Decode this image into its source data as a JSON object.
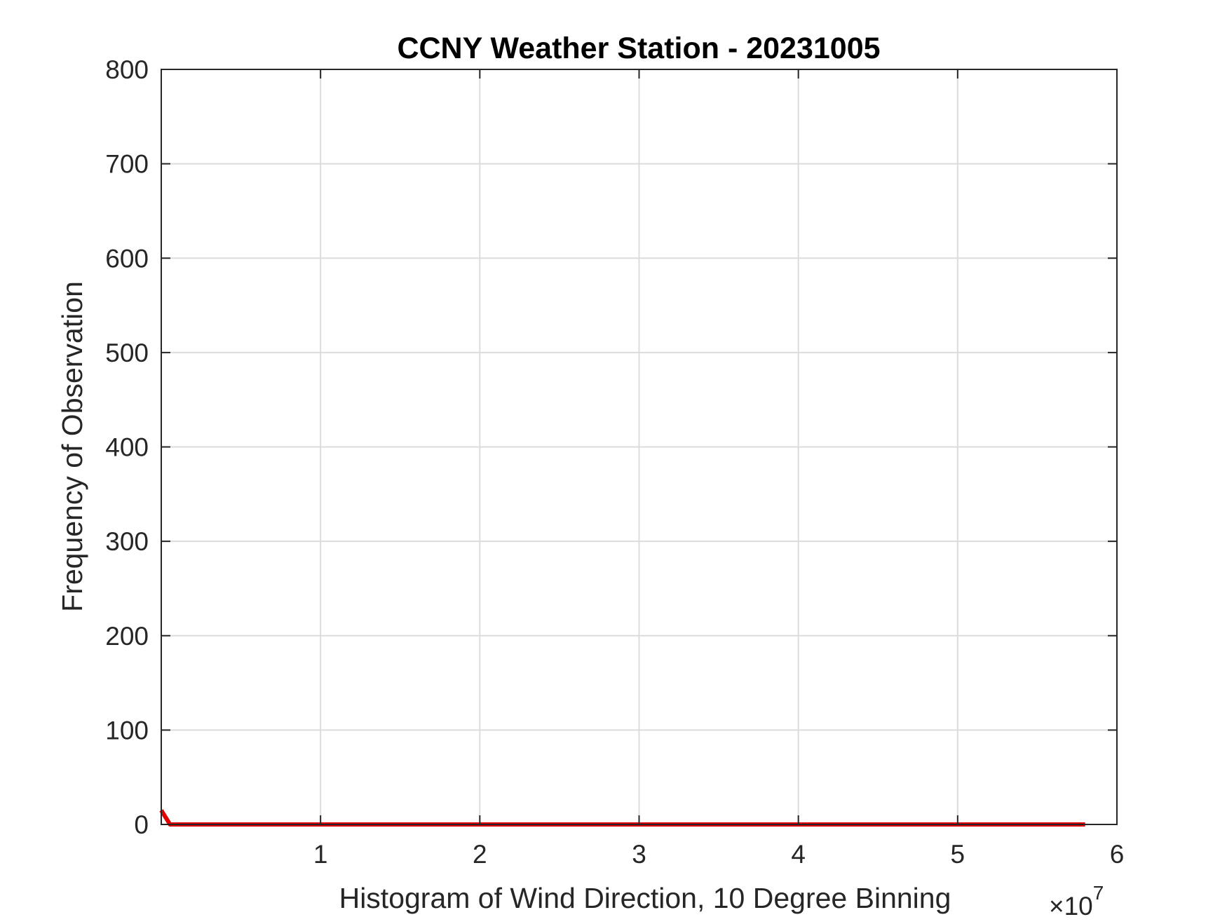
{
  "chart_data": {
    "type": "line",
    "title": "CCNY Weather Station - 20231005",
    "xlabel": "Histogram of Wind Direction, 10 Degree Binning",
    "ylabel": "Frequency of Observation",
    "x_multiplier_label": "×10",
    "x_multiplier_exponent": "7",
    "x_multiplier": 10000000,
    "xlim": [
      0,
      6
    ],
    "ylim": [
      0,
      800
    ],
    "x_ticks": [
      1,
      2,
      3,
      4,
      5,
      6
    ],
    "y_ticks": [
      0,
      100,
      200,
      300,
      400,
      500,
      600,
      700,
      800
    ],
    "grid": true,
    "series": [
      {
        "color": "#e00000",
        "x": [
          0.0,
          0.055,
          5.8
        ],
        "y": [
          15,
          0,
          0
        ]
      }
    ]
  }
}
